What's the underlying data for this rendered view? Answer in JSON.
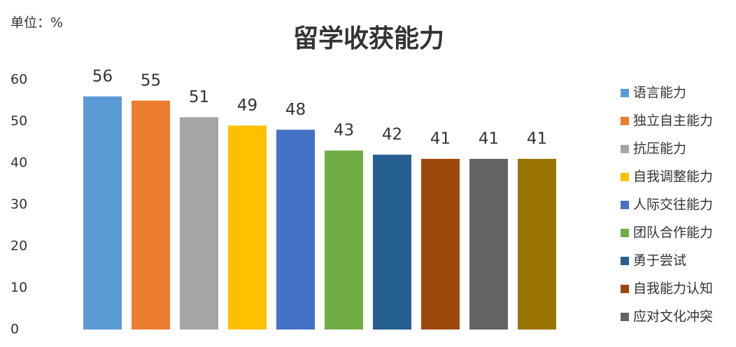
{
  "chart_data": {
    "type": "bar",
    "title": "留学收获能力",
    "unit_label": "单位：%",
    "categories": [
      "语言能力",
      "独立自主能力",
      "抗压能力",
      "自我调整能力",
      "人际交往能力",
      "团队合作能力",
      "勇于尝试",
      "自我能力认知",
      "应对文化冲突",
      null
    ],
    "values": [
      56,
      55,
      51,
      49,
      48,
      43,
      42,
      41,
      41,
      41
    ],
    "colors": [
      "#5b9bd5",
      "#ed7d31",
      "#a5a5a5",
      "#ffc000",
      "#4472c4",
      "#70ad47",
      "#255e91",
      "#9e480e",
      "#636363",
      "#997300"
    ],
    "ylim": [
      0,
      60
    ],
    "yticks": [
      0,
      10,
      20,
      30,
      40,
      50,
      60
    ],
    "grid": false,
    "legend": "right"
  }
}
